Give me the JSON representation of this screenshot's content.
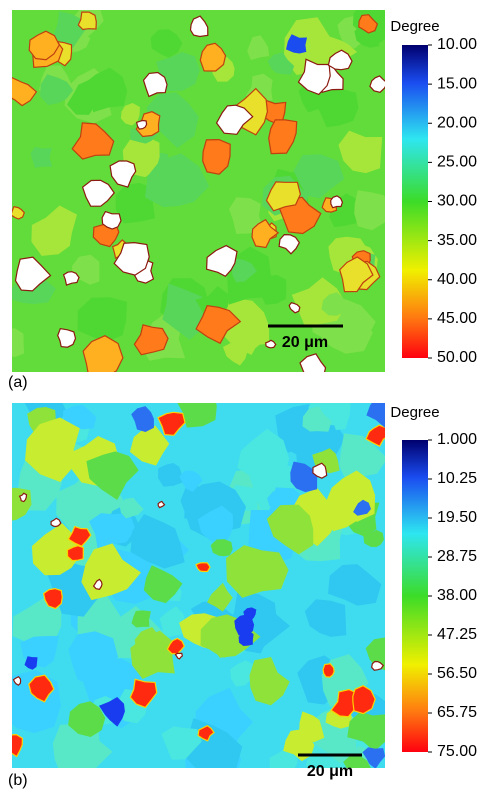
{
  "panels": [
    {
      "label": "(a)",
      "colorbar": {
        "title": "Degree",
        "ticks": [
          "10.00",
          "15.00",
          "20.00",
          "25.00",
          "30.00",
          "35.00",
          "40.00",
          "45.00",
          "50.00"
        ]
      },
      "scale_bar": "20 μm"
    },
    {
      "label": "(b)",
      "colorbar": {
        "title": "Degree",
        "ticks": [
          "1.000",
          "10.25",
          "19.50",
          "28.75",
          "38.00",
          "47.25",
          "56.50",
          "65.75",
          "75.00"
        ]
      },
      "scale_bar": "20 μm"
    }
  ]
}
